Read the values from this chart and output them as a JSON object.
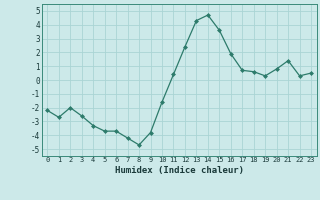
{
  "x": [
    0,
    1,
    2,
    3,
    4,
    5,
    6,
    7,
    8,
    9,
    10,
    11,
    12,
    13,
    14,
    15,
    16,
    17,
    18,
    19,
    20,
    21,
    22,
    23
  ],
  "y": [
    -2.2,
    -2.7,
    -2.0,
    -2.6,
    -3.3,
    -3.7,
    -3.7,
    -4.2,
    -4.7,
    -3.8,
    -1.6,
    0.4,
    2.4,
    4.3,
    4.7,
    3.6,
    1.9,
    0.7,
    0.6,
    0.3,
    0.8,
    1.4,
    0.3,
    0.5
  ],
  "xlabel": "Humidex (Indice chaleur)",
  "ylim": [
    -5.5,
    5.5
  ],
  "xlim": [
    -0.5,
    23.5
  ],
  "line_color": "#2d7b6b",
  "bg_color": "#cce9e9",
  "grid_color": "#aad4d4",
  "tick_labels": [
    "0",
    "1",
    "2",
    "3",
    "4",
    "5",
    "6",
    "7",
    "8",
    "9",
    "10",
    "11",
    "12",
    "13",
    "14",
    "15",
    "16",
    "17",
    "18",
    "19",
    "20",
    "21",
    "22",
    "23"
  ],
  "yticks": [
    -5,
    -4,
    -3,
    -2,
    -1,
    0,
    1,
    2,
    3,
    4,
    5
  ]
}
